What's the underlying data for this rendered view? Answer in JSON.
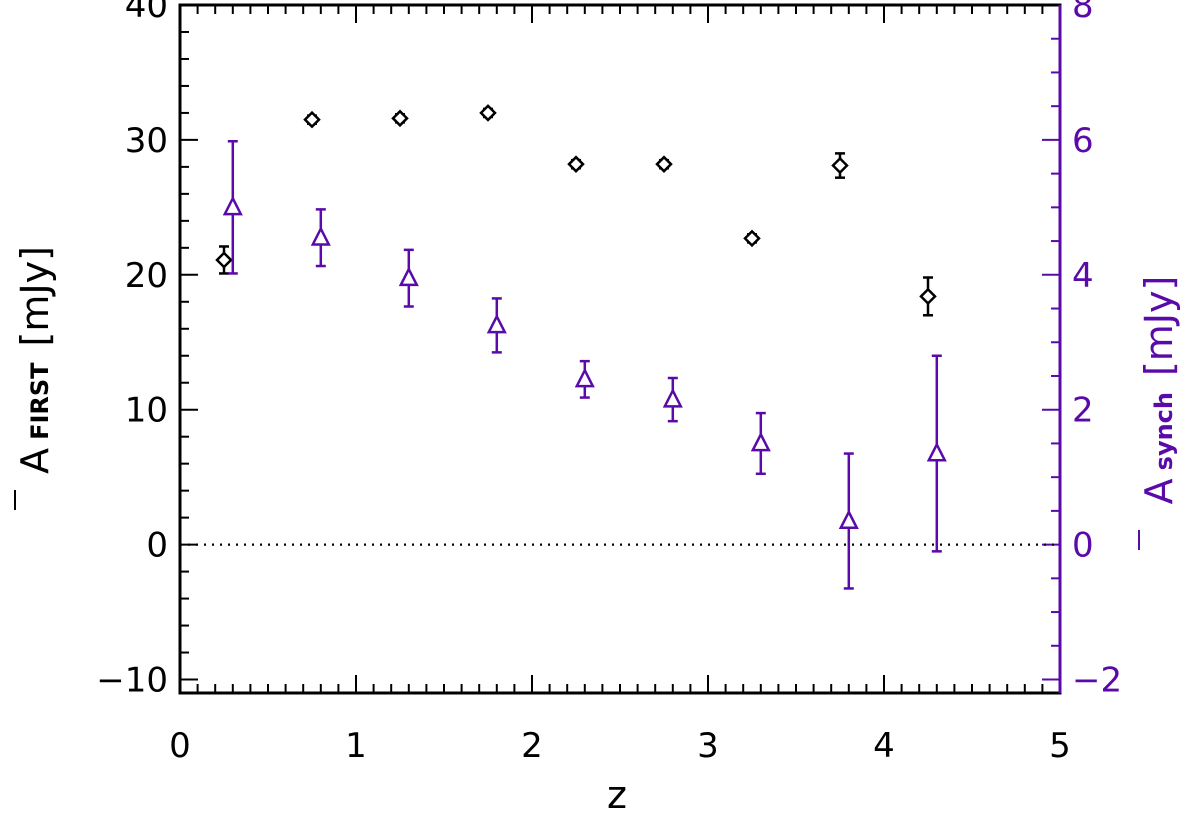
{
  "chart_data": {
    "type": "scatter",
    "xlabel": "z",
    "ylabel_left": {
      "main": "A",
      "sub": "FIRST",
      "unit": "[mJy]"
    },
    "ylabel_right": {
      "main": "A",
      "sub": "synch",
      "unit": "[mJy]"
    },
    "xlim": [
      0,
      5
    ],
    "ylim_left": [
      -11,
      40
    ],
    "ylim_right": [
      -2.2,
      8
    ],
    "x_ticks": [
      "0",
      "1",
      "2",
      "3",
      "4",
      "5"
    ],
    "y_left_ticks": [
      "−10",
      "0",
      "10",
      "20",
      "30",
      "40"
    ],
    "y_right_ticks": [
      "−2",
      "0",
      "2",
      "4",
      "6",
      "8"
    ],
    "reference_line": {
      "y": 0,
      "style": "dotted"
    },
    "colors": {
      "left": "#000000",
      "right": "#5a0aa8"
    },
    "series": [
      {
        "axis": "left",
        "marker": "diamond",
        "points": [
          {
            "x": 0.25,
            "y": 21.1,
            "err": 1.0
          },
          {
            "x": 0.75,
            "y": 31.5,
            "err": 0.3
          },
          {
            "x": 1.25,
            "y": 31.6,
            "err": 0.3
          },
          {
            "x": 1.75,
            "y": 32.0,
            "err": 0.3
          },
          {
            "x": 2.25,
            "y": 28.2,
            "err": 0.3
          },
          {
            "x": 2.75,
            "y": 28.2,
            "err": 0.3
          },
          {
            "x": 3.25,
            "y": 22.7,
            "err": 0.3
          },
          {
            "x": 3.75,
            "y": 28.1,
            "err": 0.9
          },
          {
            "x": 4.25,
            "y": 18.4,
            "err": 1.4
          }
        ]
      },
      {
        "axis": "right",
        "marker": "triangle",
        "points": [
          {
            "x": 0.3,
            "y": 5.0,
            "err": 0.98
          },
          {
            "x": 0.8,
            "y": 4.55,
            "err": 0.42
          },
          {
            "x": 1.3,
            "y": 3.95,
            "err": 0.42
          },
          {
            "x": 1.8,
            "y": 3.25,
            "err": 0.4
          },
          {
            "x": 2.3,
            "y": 2.45,
            "err": 0.27
          },
          {
            "x": 2.8,
            "y": 2.15,
            "err": 0.32
          },
          {
            "x": 3.3,
            "y": 1.5,
            "err": 0.45
          },
          {
            "x": 3.8,
            "y": 0.35,
            "err": 1.0
          },
          {
            "x": 4.3,
            "y": 1.35,
            "err": 1.45
          }
        ]
      }
    ]
  }
}
